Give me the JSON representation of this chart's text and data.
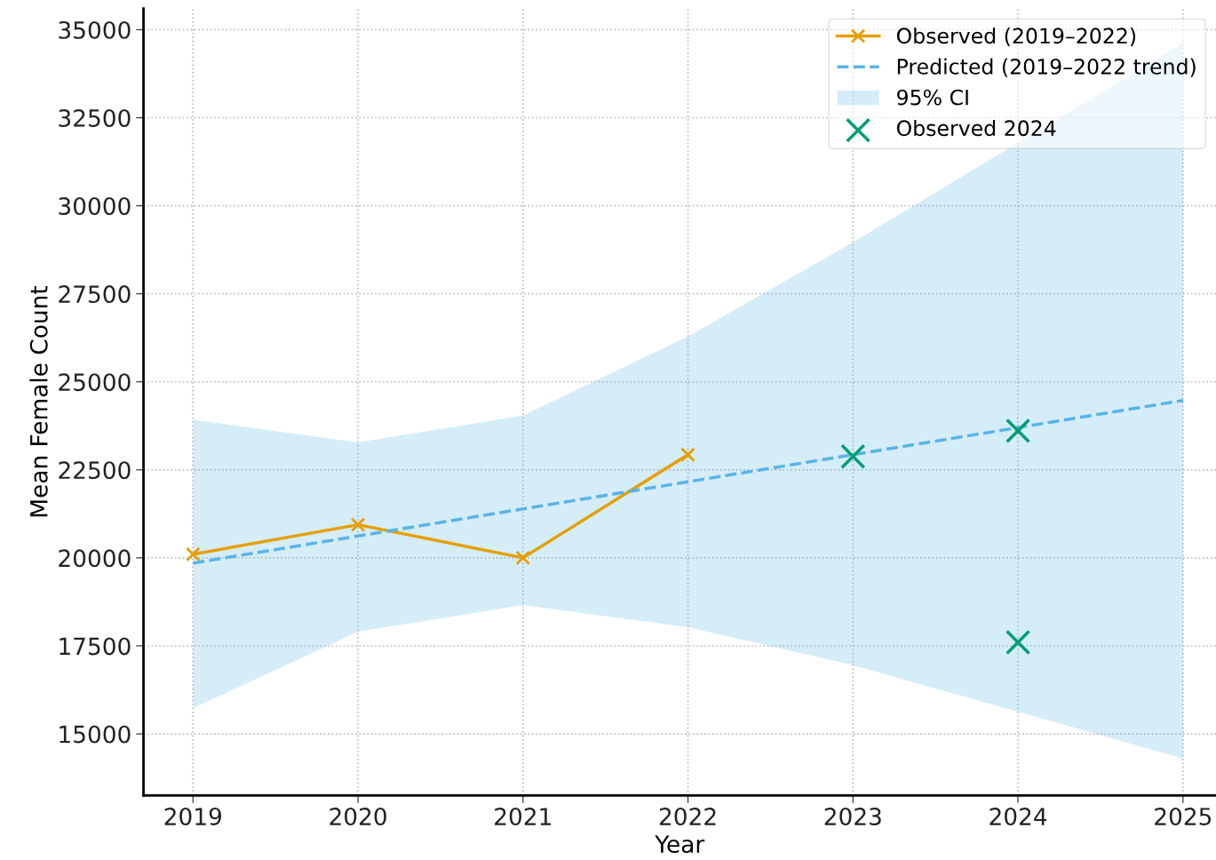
{
  "chart_data": {
    "type": "line",
    "xlabel": "Year",
    "ylabel": "Mean Female Count",
    "xlim": [
      2018.7,
      2025.2
    ],
    "ylim": [
      13250,
      35600
    ],
    "xticks": [
      2019,
      2020,
      2021,
      2022,
      2023,
      2024,
      2025
    ],
    "yticks": [
      15000,
      17500,
      20000,
      22500,
      25000,
      27500,
      30000,
      32500,
      35000
    ],
    "grid": true,
    "legend": "top right",
    "annotations": [
      "95% CI"
    ],
    "series": [
      {
        "name": "Observed (2019–2022)",
        "color": "#e69f00",
        "marker": "cross",
        "line_style": "solid",
        "x": [
          2019,
          2020,
          2021,
          2022
        ],
        "values": [
          20100,
          20940,
          20000,
          22930
        ]
      },
      {
        "name": "Predicted (2019–2022 trend)",
        "color": "#56b4e9",
        "marker": "none",
        "line_style": "dashed",
        "x": [
          2019,
          2020,
          2021,
          2022,
          2023,
          2024,
          2025
        ],
        "values": [
          19850,
          20620,
          21390,
          22160,
          22930,
          23700,
          24470
        ],
        "lower": [
          15730,
          17900,
          18660,
          18030,
          16950,
          15630,
          14300
        ],
        "upper": [
          23920,
          23280,
          24040,
          26290,
          28960,
          31790,
          34620
        ]
      },
      {
        "type": "scatter",
        "name": "Observed 2024",
        "color": "#009e73",
        "marker": "cross",
        "x": [
          2023,
          2024,
          2024
        ],
        "values": [
          22880,
          23610,
          17600
        ]
      }
    ]
  }
}
